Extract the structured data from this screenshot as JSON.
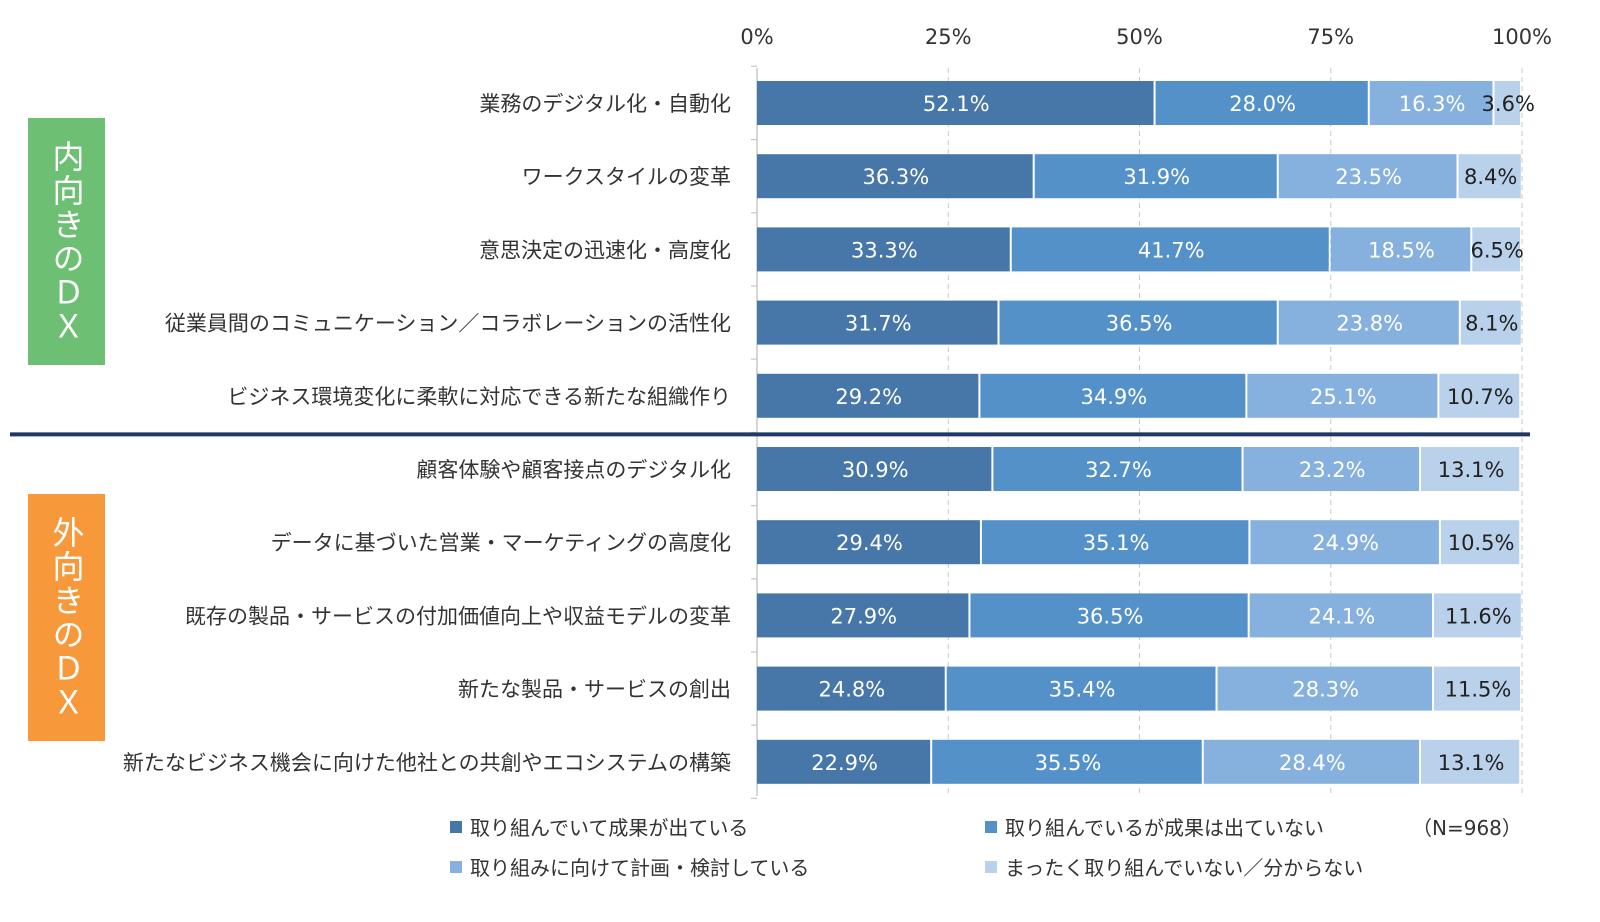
{
  "chart_data": {
    "type": "bar",
    "orientation": "horizontal",
    "stacked": true,
    "x_tick_labels": [
      "0%",
      "25%",
      "50%",
      "75%",
      "100%"
    ],
    "xlim": [
      0,
      100
    ],
    "grid": "vertical dashed",
    "categories": [
      "業務のデジタル化・自動化",
      "ワークスタイルの変革",
      "意思決定の迅速化・高度化",
      "従業員間のコミュニケーション／コラボレーションの活性化",
      "ビジネス環境変化に柔軟に対応できる新たな組織作り",
      "顧客体験や顧客接点のデジタル化",
      "データに基づいた営業・マーケティングの高度化",
      "既存の製品・サービスの付加価値向上や収益モデルの変革",
      "新たな製品・サービスの創出",
      "新たなビジネス機会に向けた他社との共創やエコシステムの構築"
    ],
    "series": [
      {
        "name": "取り組んでいて成果が出ている",
        "color": "#4677a8",
        "label_color": "#ffffff",
        "values": [
          52.1,
          36.3,
          33.3,
          31.7,
          29.2,
          30.9,
          29.4,
          27.9,
          24.8,
          22.9
        ]
      },
      {
        "name": "取り組んでいるが成果は出ていない",
        "color": "#5591c9",
        "label_color": "#ffffff",
        "values": [
          28.0,
          31.9,
          41.7,
          36.5,
          34.9,
          32.7,
          35.1,
          36.5,
          35.4,
          35.5
        ]
      },
      {
        "name": "取り組みに向けて計画・検討している",
        "color": "#86b0dd",
        "label_color": "#ffffff",
        "values": [
          16.3,
          23.5,
          18.5,
          23.8,
          25.1,
          23.2,
          24.9,
          24.1,
          28.3,
          28.4
        ]
      },
      {
        "name": "まったく取り組んでいない／分からない",
        "color": "#b9d1ea",
        "label_color": "#222222",
        "values": [
          3.6,
          8.4,
          6.5,
          8.1,
          10.7,
          13.1,
          10.5,
          11.6,
          11.5,
          13.1
        ]
      }
    ],
    "groups": [
      {
        "label": "内向きのＤＸ",
        "color": "#6dbf73",
        "category_count": 5
      },
      {
        "label": "外向きのＤＸ",
        "color": "#f7993b",
        "category_count": 5
      }
    ],
    "legend_placement": "bottom",
    "note": "（N=968）"
  }
}
